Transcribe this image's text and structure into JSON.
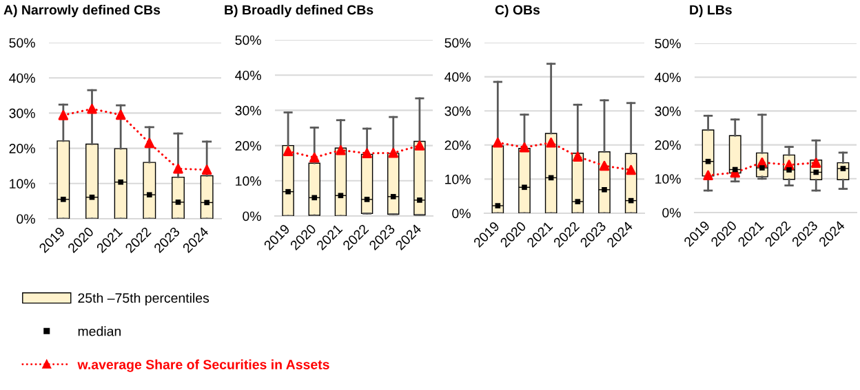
{
  "chart_data": [
    {
      "type": "box",
      "title": "A) Narrowly defined CBs",
      "categories": [
        "2019",
        "2020",
        "2021",
        "2022",
        "2023",
        "2024"
      ],
      "ylim": [
        0,
        50
      ],
      "yticks": [
        {
          "value": 0,
          "label": "0%"
        },
        {
          "value": 10,
          "label": "10%"
        },
        {
          "value": 20,
          "label": "20%"
        },
        {
          "value": 30,
          "label": "30%"
        },
        {
          "value": 40,
          "label": "40%"
        },
        {
          "value": 50,
          "label": "50%"
        }
      ],
      "grid": "y",
      "legend": "bottom",
      "series": [
        {
          "name": "25th –75th percentiles",
          "color": "#fff2cc",
          "boxes": [
            {
              "low": 0,
              "q1": 0,
              "median": 5.5,
              "q3": 22.1,
              "high": 32.4
            },
            {
              "low": 0,
              "q1": 0,
              "median": 6.1,
              "q3": 21.2,
              "high": 36.5
            },
            {
              "low": 0,
              "q1": 0,
              "median": 10.4,
              "q3": 19.9,
              "high": 32.2
            },
            {
              "low": 0,
              "q1": 0,
              "median": 6.8,
              "q3": 16.0,
              "high": 26.0
            },
            {
              "low": 0,
              "q1": 0,
              "median": 4.7,
              "q3": 11.8,
              "high": 24.2
            },
            {
              "low": 0,
              "q1": 0,
              "median": 4.6,
              "q3": 12.2,
              "high": 21.9
            }
          ]
        },
        {
          "name": "median",
          "type": "scatter",
          "color": "#000000",
          "marker": "square",
          "values": [
            5.5,
            6.1,
            10.4,
            6.8,
            4.7,
            4.6
          ]
        },
        {
          "name": "w.average Share of Securities in Assets",
          "type": "line",
          "color": "#ff0000",
          "marker": "triangle",
          "line_style": "dotted",
          "values": [
            29.4,
            31.2,
            29.5,
            21.5,
            14.2,
            13.9
          ]
        }
      ]
    },
    {
      "type": "box",
      "title": "B) Broadly defined CBs",
      "categories": [
        "2019",
        "2020",
        "2021",
        "2022",
        "2023",
        "2024"
      ],
      "ylim": [
        0,
        50
      ],
      "yticks": [
        {
          "value": 0,
          "label": "0%"
        },
        {
          "value": 10,
          "label": "10%"
        },
        {
          "value": 20,
          "label": "20%"
        },
        {
          "value": 30,
          "label": "30%"
        },
        {
          "value": 40,
          "label": "40%"
        },
        {
          "value": 50,
          "label": "50%"
        }
      ],
      "grid": "y",
      "series": [
        {
          "color": "#fff2cc",
          "boxes": [
            {
              "low": 0,
              "q1": 0,
              "median": 6.9,
              "q3": 20.0,
              "high": 29.4
            },
            {
              "low": 0,
              "q1": 0.2,
              "median": 5.2,
              "q3": 15.0,
              "high": 25.1
            },
            {
              "low": 0,
              "q1": 0,
              "median": 5.8,
              "q3": 19.3,
              "high": 27.2
            },
            {
              "low": 0.7,
              "q1": 0.7,
              "median": 4.7,
              "q3": 17.5,
              "high": 24.8
            },
            {
              "low": 0.5,
              "q1": 0.5,
              "median": 5.5,
              "q3": 17.8,
              "high": 28.1
            },
            {
              "low": 0.3,
              "q1": 0.3,
              "median": 4.5,
              "q3": 21.2,
              "high": 33.4
            }
          ]
        },
        {
          "type": "scatter",
          "color": "#000000",
          "marker": "square",
          "values": [
            6.9,
            5.2,
            5.8,
            4.7,
            5.5,
            4.5
          ]
        },
        {
          "type": "line",
          "color": "#ff0000",
          "marker": "triangle",
          "line_style": "dotted",
          "values": [
            18.4,
            16.6,
            18.7,
            17.8,
            17.9,
            20.0
          ]
        }
      ]
    },
    {
      "type": "box",
      "title": "C) OBs",
      "categories": [
        "2019",
        "2020",
        "2021",
        "2022",
        "2023",
        "2024"
      ],
      "ylim": [
        0,
        50
      ],
      "yticks": [
        {
          "value": 0,
          "label": "0%"
        },
        {
          "value": 10,
          "label": "10%"
        },
        {
          "value": 20,
          "label": "20%"
        },
        {
          "value": 30,
          "label": "30%"
        },
        {
          "value": 40,
          "label": "40%"
        },
        {
          "value": 50,
          "label": "50%"
        }
      ],
      "grid": "y",
      "series": [
        {
          "color": "#fff2cc",
          "boxes": [
            {
              "low": 0,
              "q1": 0,
              "median": 2.2,
              "q3": 19.7,
              "high": 38.5
            },
            {
              "low": 0,
              "q1": 0,
              "median": 7.6,
              "q3": 19.0,
              "high": 28.9
            },
            {
              "low": 0,
              "q1": 0,
              "median": 10.4,
              "q3": 23.4,
              "high": 43.8
            },
            {
              "low": 0,
              "q1": 0,
              "median": 3.4,
              "q3": 17.6,
              "high": 31.8
            },
            {
              "low": 0,
              "q1": 0,
              "median": 6.9,
              "q3": 18.0,
              "high": 33.1
            },
            {
              "low": 0,
              "q1": 0,
              "median": 3.7,
              "q3": 17.5,
              "high": 32.3
            }
          ]
        },
        {
          "type": "scatter",
          "color": "#000000",
          "marker": "square",
          "values": [
            2.2,
            7.6,
            10.4,
            3.4,
            6.9,
            3.7
          ]
        },
        {
          "type": "line",
          "color": "#ff0000",
          "marker": "triangle",
          "line_style": "dotted",
          "values": [
            20.7,
            19.3,
            20.7,
            16.6,
            13.9,
            12.7
          ]
        }
      ]
    },
    {
      "type": "box",
      "title": "D) LBs",
      "categories": [
        "2019",
        "2020",
        "2021",
        "2022",
        "2023",
        "2024"
      ],
      "ylim": [
        0,
        50
      ],
      "yticks": [
        {
          "value": 0,
          "label": "0%"
        },
        {
          "value": 10,
          "label": "10%"
        },
        {
          "value": 20,
          "label": "20%"
        },
        {
          "value": 30,
          "label": "30%"
        },
        {
          "value": 40,
          "label": "40%"
        },
        {
          "value": 50,
          "label": "50%"
        }
      ],
      "grid": "y",
      "series": [
        {
          "color": "#fff2cc",
          "boxes": [
            {
              "low": 6.5,
              "q1": 10.8,
              "median": 15.1,
              "q3": 24.4,
              "high": 28.6
            },
            {
              "low": 9.2,
              "q1": 11.7,
              "median": 12.7,
              "q3": 22.7,
              "high": 27.5
            },
            {
              "low": 10.0,
              "q1": 10.6,
              "median": 13.2,
              "q3": 17.6,
              "high": 28.9
            },
            {
              "low": 8.0,
              "q1": 9.8,
              "median": 12.6,
              "q3": 17.0,
              "high": 19.4
            },
            {
              "low": 6.5,
              "q1": 9.7,
              "median": 11.9,
              "q3": 15.5,
              "high": 21.3
            },
            {
              "low": 7.0,
              "q1": 9.7,
              "median": 13.0,
              "q3": 14.7,
              "high": 17.7
            }
          ]
        },
        {
          "type": "scatter",
          "color": "#000000",
          "marker": "square",
          "values": [
            15.1,
            12.7,
            13.2,
            12.6,
            11.9,
            13.0
          ]
        },
        {
          "type": "line",
          "color": "#ff0000",
          "marker": "triangle",
          "line_style": "dotted",
          "values": [
            11.0,
            11.8,
            14.8,
            14.1,
            14.7,
            null
          ]
        }
      ]
    }
  ]
}
